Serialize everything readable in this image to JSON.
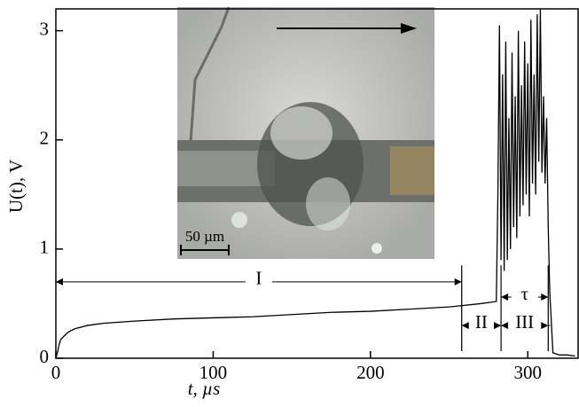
{
  "chart_data": {
    "type": "line",
    "xlabel": "t, µs",
    "ylabel": "U(t), V",
    "x": [
      0,
      1,
      2,
      3,
      5,
      8,
      12,
      20,
      30,
      50,
      75,
      100,
      125,
      150,
      175,
      200,
      225,
      250,
      270,
      280,
      281,
      282,
      283,
      284,
      285,
      286,
      287,
      288,
      289,
      290,
      291,
      292,
      293,
      294,
      295,
      296,
      297,
      298,
      299,
      300,
      301,
      302,
      303,
      304,
      305,
      306,
      307,
      308,
      309,
      310,
      311,
      312,
      313,
      314,
      316,
      320,
      325,
      330
    ],
    "series": [
      {
        "color": "#000000",
        "values": [
          0,
          0.05,
          0.12,
          0.17,
          0.2,
          0.24,
          0.27,
          0.3,
          0.32,
          0.34,
          0.36,
          0.37,
          0.38,
          0.4,
          0.42,
          0.43,
          0.45,
          0.47,
          0.5,
          0.52,
          1.5,
          3.05,
          0.9,
          2.6,
          0.8,
          2.9,
          0.9,
          2.2,
          1.0,
          2.8,
          1.2,
          2.4,
          1.1,
          3.0,
          1.3,
          2.5,
          1.4,
          2.9,
          1.5,
          2.7,
          1.3,
          3.1,
          1.6,
          2.6,
          1.5,
          3.15,
          1.8,
          3.2,
          1.7,
          2.4,
          1.6,
          2.2,
          1.2,
          0.6,
          0.05,
          0.03,
          0.03,
          0.02
        ]
      }
    ],
    "xlim": [
      0,
      332
    ],
    "xticks": [
      0,
      100,
      200,
      300
    ],
    "ylim": [
      0,
      3.2
    ],
    "yticks": [
      0,
      1,
      2,
      3
    ],
    "annotations": [
      {
        "text": "I",
        "span": [
          0,
          258
        ],
        "y": 0.7
      },
      {
        "text": "II",
        "span": [
          258,
          283
        ],
        "y": 0.3
      },
      {
        "text": "III",
        "span": [
          283,
          313
        ],
        "y": 0.3
      },
      {
        "text": "τ",
        "span": [
          283,
          313
        ],
        "y": 0.56
      }
    ],
    "inset_scale_label": "50 µm"
  }
}
